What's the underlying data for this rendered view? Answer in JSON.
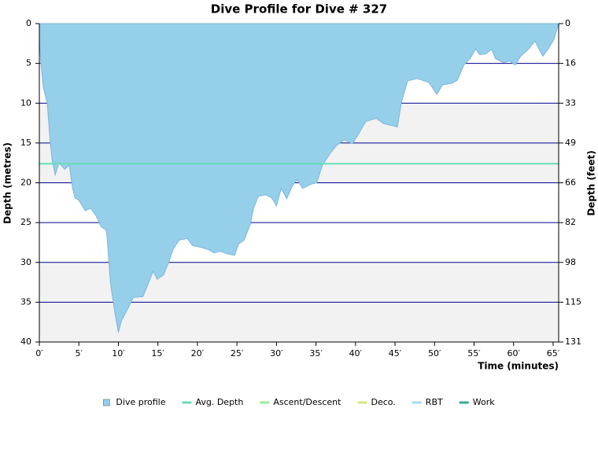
{
  "chart_data": {
    "type": "area",
    "title": "Dive Profile for Dive # 327",
    "y_label": "Depth (metres)",
    "y2_label": "Depth (feet)",
    "x_label": "Time (minutes)",
    "y_inverted": true,
    "xlim": [
      0,
      65.7
    ],
    "ylim": [
      0,
      40
    ],
    "y2lim": [
      0,
      131.2
    ],
    "xticks": [
      {
        "value": 0,
        "label": "0′"
      },
      {
        "value": 5,
        "label": "5′"
      },
      {
        "value": 10,
        "label": "10′"
      },
      {
        "value": 15,
        "label": "15′"
      },
      {
        "value": 20,
        "label": "20′"
      },
      {
        "value": 25,
        "label": "25′"
      },
      {
        "value": 30,
        "label": "30′"
      },
      {
        "value": 35,
        "label": "35′"
      },
      {
        "value": 40,
        "label": "40′"
      },
      {
        "value": 45,
        "label": "45′"
      },
      {
        "value": 50,
        "label": "50′"
      },
      {
        "value": 55,
        "label": "55′"
      },
      {
        "value": 60,
        "label": "60′"
      },
      {
        "value": 65,
        "label": "65′"
      }
    ],
    "yticks": [
      0,
      5,
      10,
      15,
      20,
      25,
      30,
      35,
      40
    ],
    "y2ticks": [
      {
        "value": 0,
        "label": "0"
      },
      {
        "value": 16.4,
        "label": "16"
      },
      {
        "value": 32.8,
        "label": "33"
      },
      {
        "value": 49.2,
        "label": "49"
      },
      {
        "value": 65.6,
        "label": "66"
      },
      {
        "value": 82,
        "label": "82"
      },
      {
        "value": 98.4,
        "label": "98"
      },
      {
        "value": 114.8,
        "label": "115"
      },
      {
        "value": 131.2,
        "label": "131"
      }
    ],
    "grid": true,
    "grid_color": "#00008b",
    "band_color": "#f2f2f2",
    "x": [
      0,
      0.2,
      0.5,
      1.0,
      1.3,
      1.6,
      2.0,
      2.5,
      3.2,
      3.8,
      4.2,
      4.5,
      5.0,
      5.8,
      6.5,
      7.2,
      7.8,
      8.5,
      9.0,
      9.5,
      10.0,
      10.4,
      11.1,
      11.9,
      13.1,
      13.6,
      14.4,
      14.9,
      15.7,
      16.4,
      16.9,
      17.7,
      18.7,
      19.4,
      20.4,
      21.4,
      22.1,
      22.9,
      23.7,
      24.7,
      25.2,
      25.9,
      26.7,
      27.1,
      27.7,
      28.6,
      29.4,
      30.0,
      30.6,
      31.3,
      32.0,
      32.6,
      33.3,
      34.3,
      35.1,
      35.8,
      36.8,
      37.6,
      38.6,
      39.6,
      40.3,
      41.3,
      42.6,
      43.6,
      44.6,
      45.3,
      45.8,
      46.6,
      47.8,
      49.3,
      50.3,
      51.0,
      52.2,
      52.9,
      53.7,
      54.5,
      55.2,
      55.7,
      56.5,
      57.2,
      57.7,
      58.7,
      59.5,
      60.2,
      60.9,
      61.9,
      62.7,
      63.7,
      64.5,
      65.1,
      65.7
    ],
    "series": [
      {
        "name": "Dive profile",
        "color": "#95cfe9",
        "values": [
          2,
          5,
          8,
          10,
          14,
          17,
          19,
          17.5,
          18.3,
          17.8,
          20.7,
          21.9,
          22.2,
          23.5,
          23.2,
          24.2,
          25.5,
          26,
          32.6,
          36,
          38.8,
          37.3,
          36,
          34.4,
          34.3,
          33.1,
          31.1,
          32.1,
          31.6,
          29.9,
          28.4,
          27.2,
          27,
          27.9,
          28.1,
          28.4,
          28.8,
          28.6,
          28.9,
          29.1,
          27.7,
          27.2,
          25.2,
          23.2,
          21.7,
          21.5,
          21.9,
          22.9,
          20.7,
          22,
          20.4,
          19.6,
          20.7,
          20.2,
          20,
          17.8,
          16.3,
          15.3,
          14.6,
          15.1,
          14,
          12.3,
          11.9,
          12.6,
          12.8,
          13,
          9.9,
          7.2,
          6.9,
          7.4,
          8.9,
          7.7,
          7.5,
          7.1,
          5.2,
          4.4,
          3.2,
          3.9,
          3.8,
          3.2,
          4.4,
          4.9,
          4.7,
          5.2,
          4.1,
          3.2,
          2.2,
          4.1,
          3,
          2,
          0
        ]
      }
    ],
    "avg_depth": 17.6,
    "legend": [
      {
        "name": "Dive profile",
        "color": "#95cfe9",
        "symbol": "box"
      },
      {
        "name": "Avg. Depth",
        "color": "#66ddb8",
        "symbol": "line"
      },
      {
        "name": "Ascent/Descent",
        "color": "#99ee99",
        "symbol": "line"
      },
      {
        "name": "Deco.",
        "color": "#d4e87a",
        "symbol": "line"
      },
      {
        "name": "RBT",
        "color": "#a8dcf0",
        "symbol": "line"
      },
      {
        "name": "Work",
        "color": "#33aa99",
        "symbol": "line"
      }
    ]
  }
}
